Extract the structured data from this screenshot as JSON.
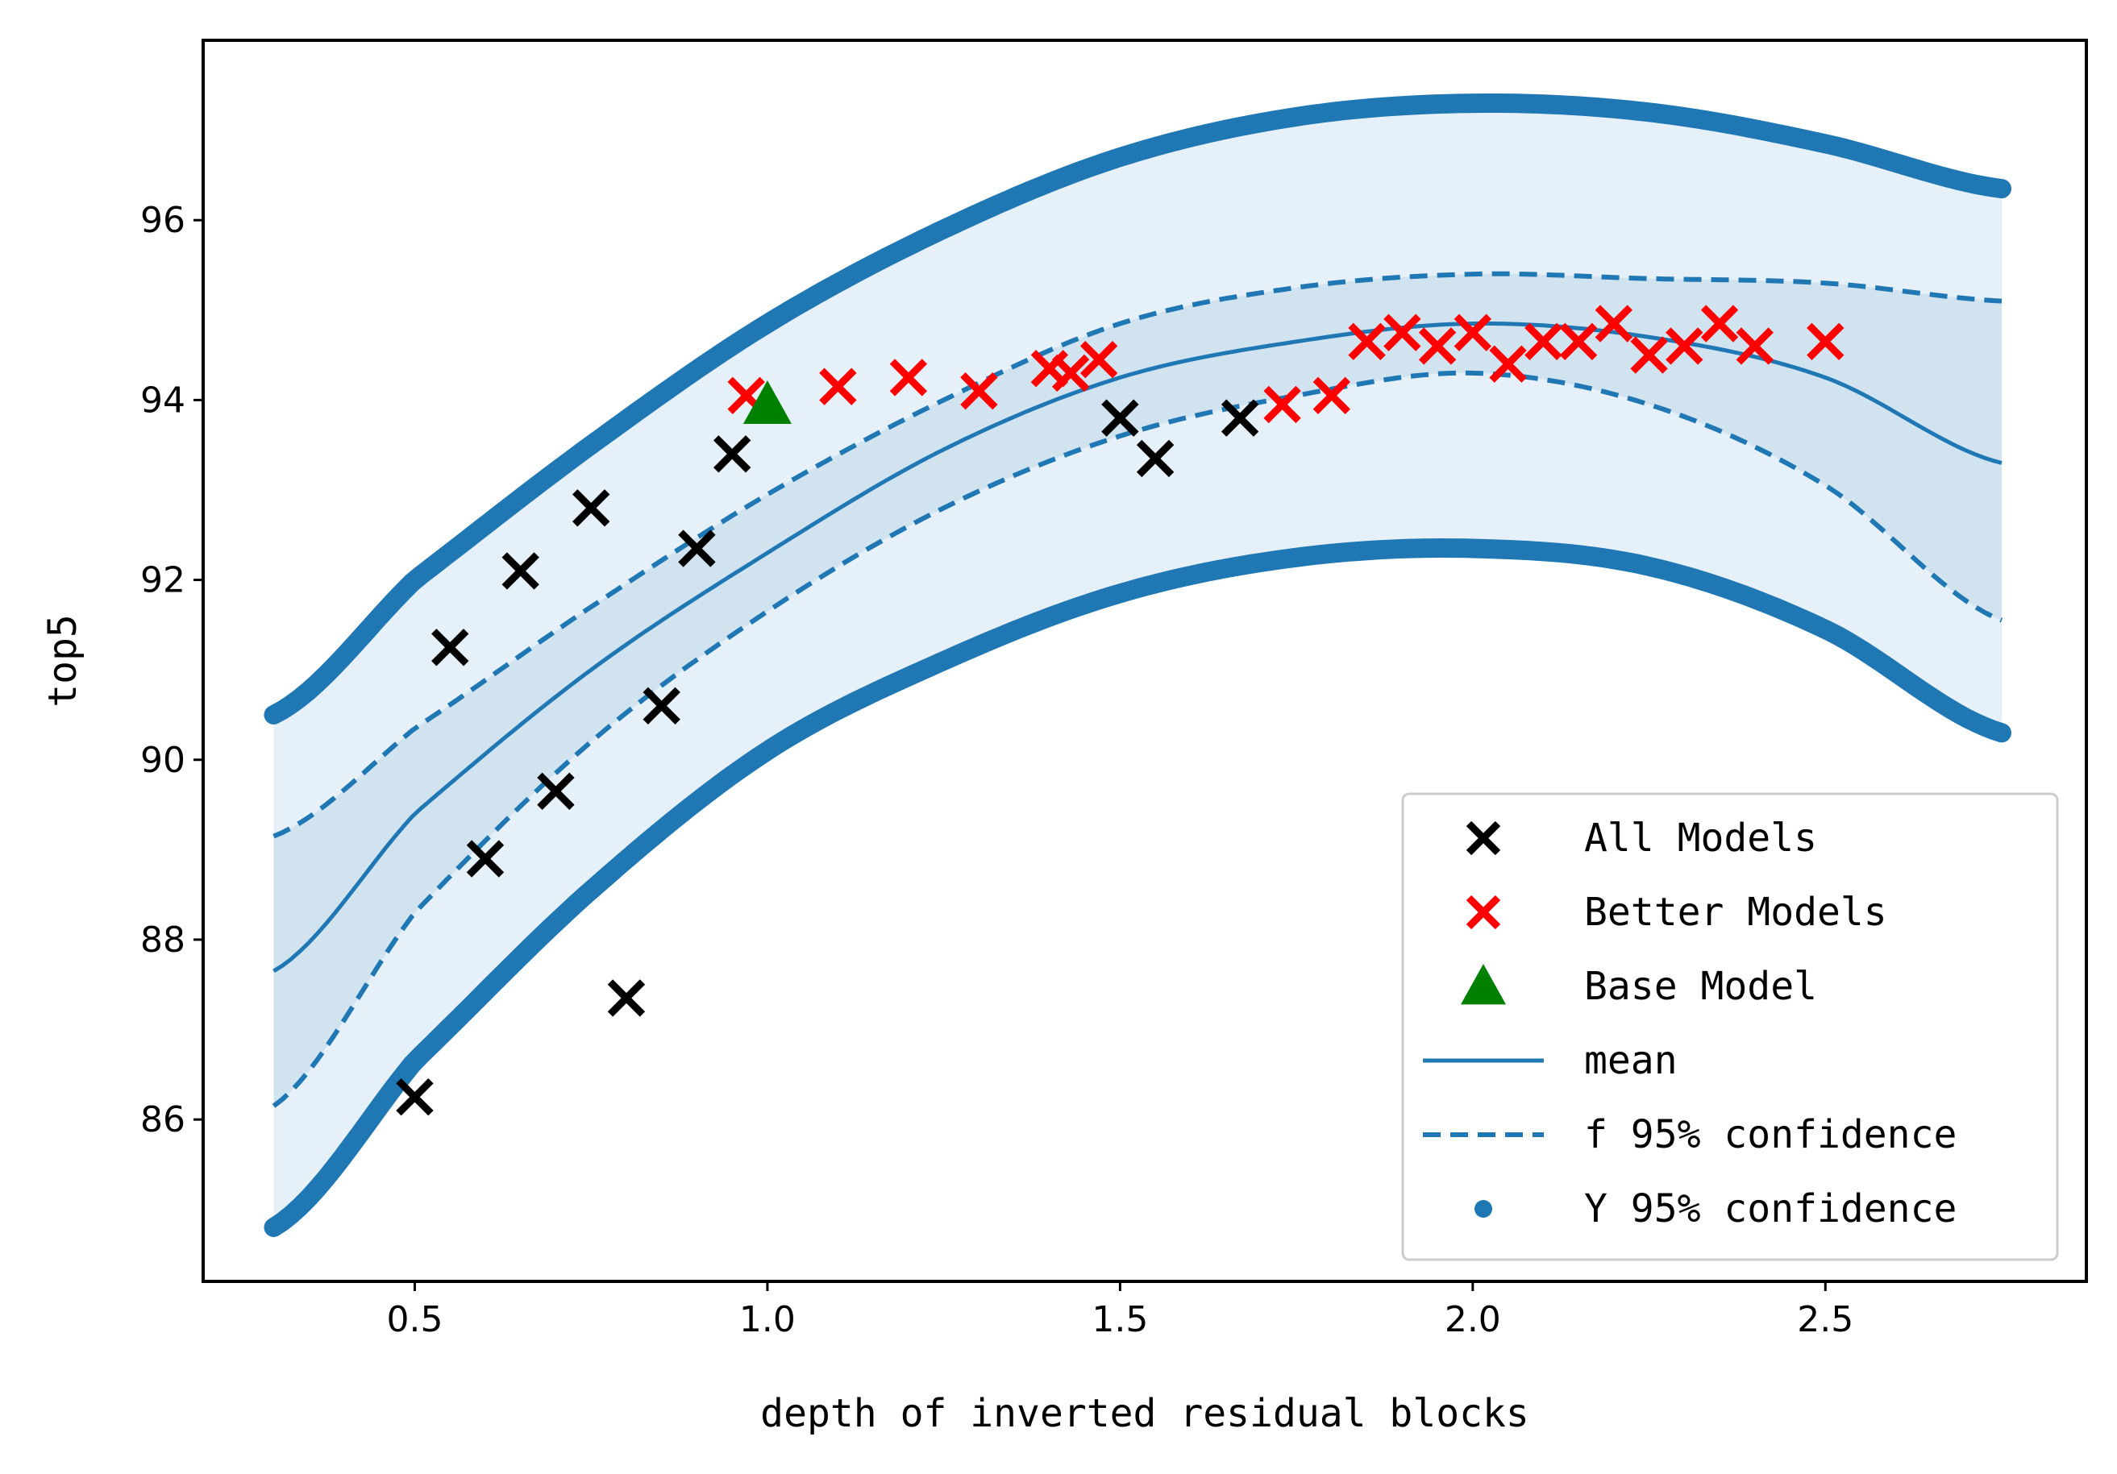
{
  "chart_data": {
    "type": "scatter",
    "title": "",
    "xlabel": "depth of inverted residual blocks",
    "ylabel": "top5",
    "xlim": [
      0.2,
      2.87
    ],
    "ylim": [
      84.2,
      98.0
    ],
    "xticks": [
      0.5,
      1.0,
      1.5,
      2.0,
      2.5
    ],
    "xtick_labels": [
      "0.5",
      "1.0",
      "1.5",
      "2.0",
      "2.5"
    ],
    "yticks": [
      86,
      88,
      90,
      92,
      94,
      96
    ],
    "ytick_labels": [
      "86",
      "88",
      "90",
      "92",
      "94",
      "96"
    ],
    "grid": false,
    "legend_position": "lower-right",
    "colors": {
      "all_models": "#000000",
      "better_models": "#ff0000",
      "base_model": "#008000",
      "fit": "#1f77b4",
      "band_fill": "#e6f0f8",
      "inner_band_fill": "#d2e3f0"
    },
    "curves": {
      "x_range": [
        0.3,
        2.75
      ],
      "mean": {
        "x": [
          0.3,
          0.5,
          0.75,
          1.0,
          1.25,
          1.5,
          1.75,
          2.0,
          2.25,
          2.5,
          2.75
        ],
        "y": [
          87.65,
          89.4,
          91.0,
          92.3,
          93.45,
          94.25,
          94.65,
          94.85,
          94.7,
          94.25,
          93.3
        ]
      },
      "f_upper": {
        "x": [
          0.3,
          0.5,
          0.75,
          1.0,
          1.25,
          1.5,
          1.75,
          2.0,
          2.25,
          2.5,
          2.75
        ],
        "y": [
          89.15,
          90.35,
          91.7,
          92.95,
          94.0,
          94.85,
          95.25,
          95.4,
          95.35,
          95.3,
          95.1
        ]
      },
      "f_lower": {
        "x": [
          0.3,
          0.5,
          0.75,
          1.0,
          1.25,
          1.5,
          1.75,
          2.0,
          2.25,
          2.5,
          2.75
        ],
        "y": [
          86.15,
          88.3,
          90.2,
          91.65,
          92.8,
          93.6,
          94.05,
          94.3,
          93.95,
          93.05,
          91.55
        ]
      },
      "y_upper": {
        "x": [
          0.3,
          0.5,
          0.75,
          1.0,
          1.25,
          1.5,
          1.75,
          2.0,
          2.25,
          2.5,
          2.75
        ],
        "y": [
          90.5,
          92.0,
          93.5,
          94.85,
          95.9,
          96.7,
          97.15,
          97.3,
          97.2,
          96.85,
          96.35
        ]
      },
      "y_lower": {
        "x": [
          0.3,
          0.5,
          0.75,
          1.0,
          1.25,
          1.5,
          1.75,
          2.0,
          2.25,
          2.5,
          2.75
        ],
        "y": [
          84.8,
          86.65,
          88.55,
          90.1,
          91.1,
          91.85,
          92.25,
          92.35,
          92.15,
          91.45,
          90.3
        ]
      }
    },
    "series": [
      {
        "name": "All Models",
        "marker": "x",
        "points": [
          [
            0.5,
            86.25
          ],
          [
            0.55,
            91.25
          ],
          [
            0.6,
            88.9
          ],
          [
            0.65,
            92.1
          ],
          [
            0.7,
            89.65
          ],
          [
            0.75,
            92.8
          ],
          [
            0.8,
            87.35
          ],
          [
            0.85,
            90.6
          ],
          [
            0.9,
            92.35
          ],
          [
            0.95,
            93.4
          ],
          [
            1.5,
            93.8
          ],
          [
            1.55,
            93.35
          ],
          [
            1.67,
            93.8
          ]
        ]
      },
      {
        "name": "Better Models",
        "marker": "x",
        "points": [
          [
            0.97,
            94.05
          ],
          [
            1.1,
            94.15
          ],
          [
            1.2,
            94.25
          ],
          [
            1.3,
            94.1
          ],
          [
            1.4,
            94.35
          ],
          [
            1.43,
            94.3
          ],
          [
            1.47,
            94.45
          ],
          [
            1.73,
            93.95
          ],
          [
            1.8,
            94.05
          ],
          [
            1.85,
            94.65
          ],
          [
            1.9,
            94.75
          ],
          [
            1.95,
            94.6
          ],
          [
            2.0,
            94.75
          ],
          [
            2.05,
            94.4
          ],
          [
            2.1,
            94.65
          ],
          [
            2.15,
            94.65
          ],
          [
            2.2,
            94.85
          ],
          [
            2.25,
            94.5
          ],
          [
            2.3,
            94.6
          ],
          [
            2.35,
            94.85
          ],
          [
            2.4,
            94.6
          ],
          [
            2.5,
            94.65
          ]
        ]
      },
      {
        "name": "Base Model",
        "marker": "triangle",
        "points": [
          [
            1.0,
            93.95
          ]
        ]
      }
    ],
    "legend": [
      {
        "key": "all",
        "label": "All Models"
      },
      {
        "key": "better",
        "label": "Better Models"
      },
      {
        "key": "base",
        "label": "Base Model"
      },
      {
        "key": "mean",
        "label": "mean"
      },
      {
        "key": "f95",
        "label": "f 95% confidence"
      },
      {
        "key": "y95",
        "label": "Y 95% confidence"
      }
    ]
  }
}
